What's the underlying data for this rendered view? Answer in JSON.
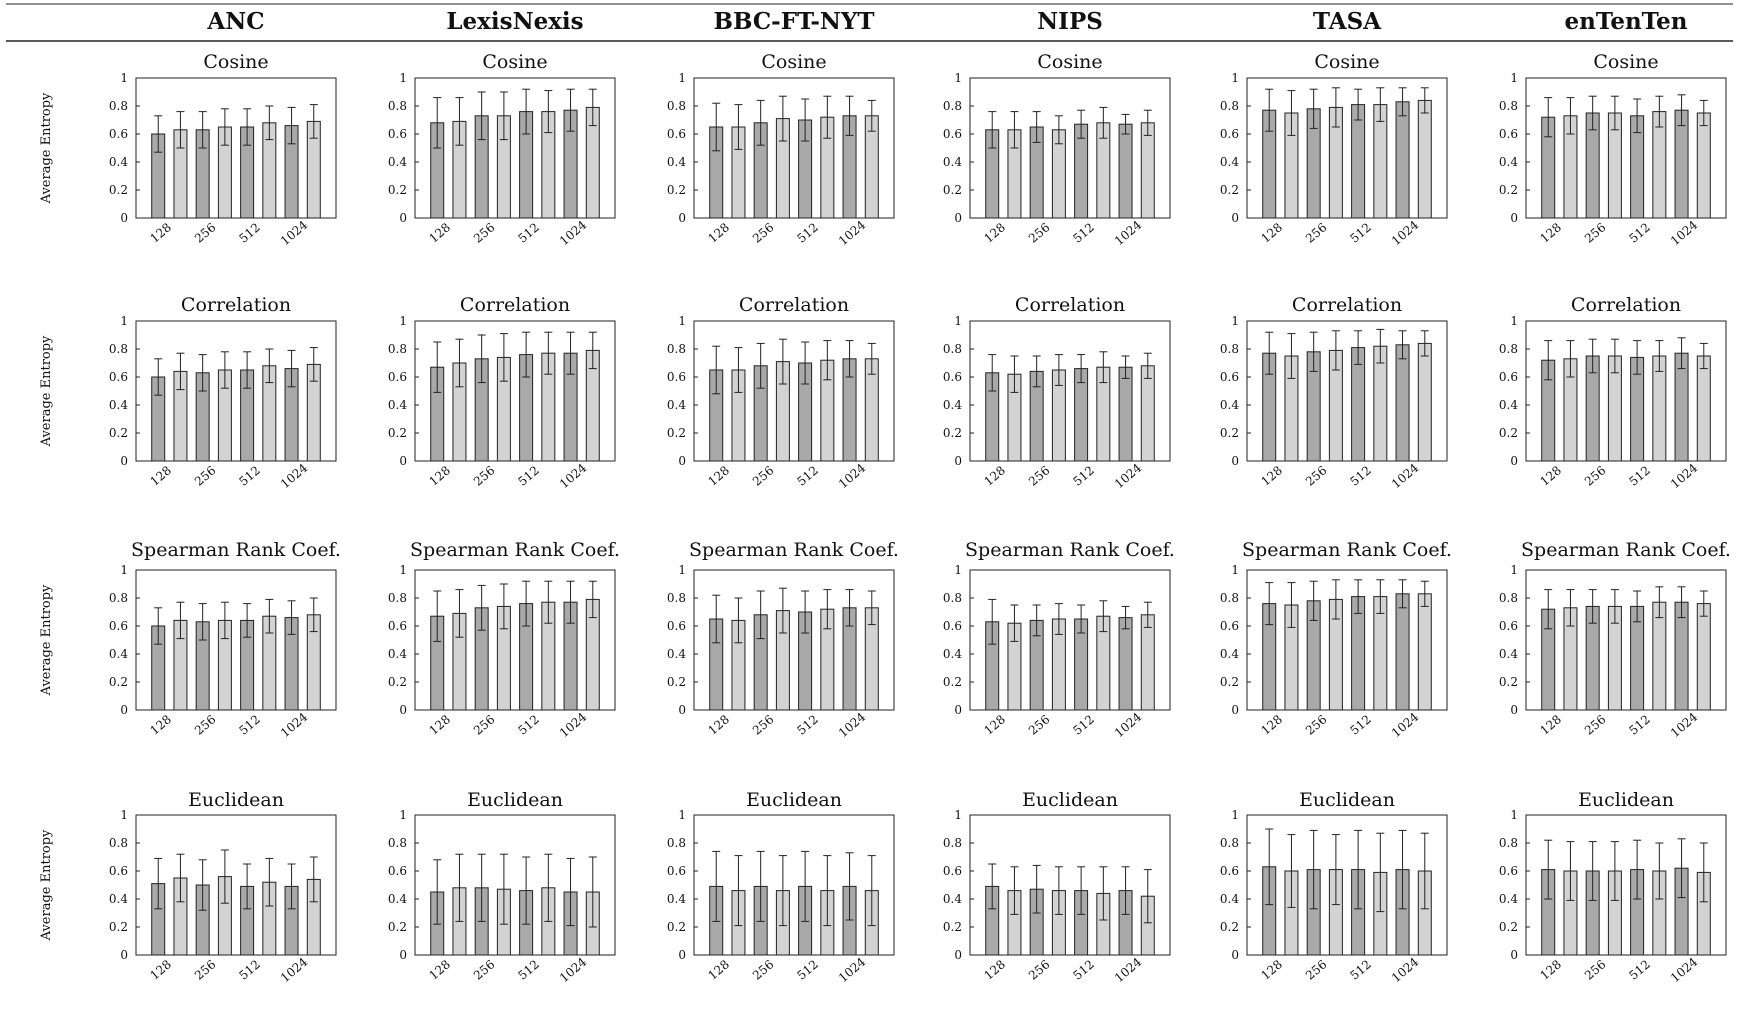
{
  "datasets": [
    "ANC",
    "LexisNexis",
    "BBC-FT-NYT",
    "NIPS",
    "TASA",
    "enTenTen"
  ],
  "ylabel": "Average Entropy",
  "chart_data": {
    "type": "bar",
    "layout": "grid of 4 rows (metrics) by 6 columns (datasets); two bars per dimension with error bars",
    "categories": [
      "128",
      "256",
      "512",
      "1024"
    ],
    "yticks": [
      "0",
      "0.2",
      "0.4",
      "0.6",
      "0.8",
      "1"
    ],
    "ylim": [
      0,
      1
    ],
    "grid": false,
    "panels": [
      {
        "dataset": "ANC",
        "title": "Cosine",
        "values": [
          0.6,
          0.63,
          0.63,
          0.65,
          0.65,
          0.68,
          0.66,
          0.69
        ],
        "errors": [
          0.13,
          0.13,
          0.13,
          0.13,
          0.13,
          0.12,
          0.13,
          0.12
        ]
      },
      {
        "dataset": "LexisNexis",
        "title": "Cosine",
        "values": [
          0.68,
          0.69,
          0.73,
          0.73,
          0.76,
          0.76,
          0.77,
          0.79
        ],
        "errors": [
          0.18,
          0.17,
          0.17,
          0.17,
          0.16,
          0.15,
          0.15,
          0.13
        ]
      },
      {
        "dataset": "BBC-FT-NYT",
        "title": "Cosine",
        "values": [
          0.65,
          0.65,
          0.68,
          0.71,
          0.7,
          0.72,
          0.73,
          0.73
        ],
        "errors": [
          0.17,
          0.16,
          0.16,
          0.16,
          0.15,
          0.15,
          0.14,
          0.11
        ]
      },
      {
        "dataset": "NIPS",
        "title": "Cosine",
        "values": [
          0.63,
          0.63,
          0.65,
          0.63,
          0.67,
          0.68,
          0.67,
          0.68
        ],
        "errors": [
          0.13,
          0.13,
          0.11,
          0.1,
          0.1,
          0.11,
          0.07,
          0.09
        ]
      },
      {
        "dataset": "TASA",
        "title": "Cosine",
        "values": [
          0.77,
          0.75,
          0.78,
          0.79,
          0.81,
          0.81,
          0.83,
          0.84
        ],
        "errors": [
          0.15,
          0.16,
          0.14,
          0.14,
          0.11,
          0.12,
          0.1,
          0.09
        ]
      },
      {
        "dataset": "enTenTen",
        "title": "Cosine",
        "values": [
          0.72,
          0.73,
          0.75,
          0.75,
          0.73,
          0.76,
          0.77,
          0.75
        ],
        "errors": [
          0.14,
          0.13,
          0.12,
          0.12,
          0.12,
          0.11,
          0.11,
          0.09
        ]
      },
      {
        "dataset": "ANC",
        "title": "Correlation",
        "values": [
          0.6,
          0.64,
          0.63,
          0.65,
          0.65,
          0.68,
          0.66,
          0.69
        ],
        "errors": [
          0.13,
          0.13,
          0.13,
          0.13,
          0.13,
          0.12,
          0.13,
          0.12
        ]
      },
      {
        "dataset": "LexisNexis",
        "title": "Correlation",
        "values": [
          0.67,
          0.7,
          0.73,
          0.74,
          0.76,
          0.77,
          0.77,
          0.79
        ],
        "errors": [
          0.18,
          0.17,
          0.17,
          0.17,
          0.16,
          0.15,
          0.15,
          0.13
        ]
      },
      {
        "dataset": "BBC-FT-NYT",
        "title": "Correlation",
        "values": [
          0.65,
          0.65,
          0.68,
          0.71,
          0.7,
          0.72,
          0.73,
          0.73
        ],
        "errors": [
          0.17,
          0.16,
          0.16,
          0.16,
          0.15,
          0.14,
          0.13,
          0.11
        ]
      },
      {
        "dataset": "NIPS",
        "title": "Correlation",
        "values": [
          0.63,
          0.62,
          0.64,
          0.65,
          0.66,
          0.67,
          0.67,
          0.68
        ],
        "errors": [
          0.13,
          0.13,
          0.11,
          0.11,
          0.1,
          0.11,
          0.08,
          0.09
        ]
      },
      {
        "dataset": "TASA",
        "title": "Correlation",
        "values": [
          0.77,
          0.75,
          0.78,
          0.79,
          0.81,
          0.82,
          0.83,
          0.84
        ],
        "errors": [
          0.15,
          0.16,
          0.14,
          0.14,
          0.12,
          0.12,
          0.1,
          0.09
        ]
      },
      {
        "dataset": "enTenTen",
        "title": "Correlation",
        "values": [
          0.72,
          0.73,
          0.75,
          0.75,
          0.74,
          0.75,
          0.77,
          0.75
        ],
        "errors": [
          0.14,
          0.13,
          0.12,
          0.12,
          0.12,
          0.11,
          0.11,
          0.09
        ]
      },
      {
        "dataset": "ANC",
        "title": "Spearman Rank Coef.",
        "values": [
          0.6,
          0.64,
          0.63,
          0.64,
          0.64,
          0.67,
          0.66,
          0.68
        ],
        "errors": [
          0.13,
          0.13,
          0.13,
          0.13,
          0.12,
          0.12,
          0.12,
          0.12
        ]
      },
      {
        "dataset": "LexisNexis",
        "title": "Spearman Rank Coef.",
        "values": [
          0.67,
          0.69,
          0.73,
          0.74,
          0.76,
          0.77,
          0.77,
          0.79
        ],
        "errors": [
          0.18,
          0.17,
          0.16,
          0.16,
          0.16,
          0.15,
          0.15,
          0.13
        ]
      },
      {
        "dataset": "BBC-FT-NYT",
        "title": "Spearman Rank Coef.",
        "values": [
          0.65,
          0.64,
          0.68,
          0.71,
          0.7,
          0.72,
          0.73,
          0.73
        ],
        "errors": [
          0.17,
          0.16,
          0.17,
          0.16,
          0.15,
          0.14,
          0.13,
          0.12
        ]
      },
      {
        "dataset": "NIPS",
        "title": "Spearman Rank Coef.",
        "values": [
          0.63,
          0.62,
          0.64,
          0.65,
          0.65,
          0.67,
          0.66,
          0.68
        ],
        "errors": [
          0.16,
          0.13,
          0.11,
          0.11,
          0.1,
          0.11,
          0.08,
          0.09
        ]
      },
      {
        "dataset": "TASA",
        "title": "Spearman Rank Coef.",
        "values": [
          0.76,
          0.75,
          0.78,
          0.79,
          0.81,
          0.81,
          0.83,
          0.83
        ],
        "errors": [
          0.15,
          0.16,
          0.14,
          0.14,
          0.12,
          0.12,
          0.1,
          0.09
        ]
      },
      {
        "dataset": "enTenTen",
        "title": "Spearman Rank Coef.",
        "values": [
          0.72,
          0.73,
          0.74,
          0.74,
          0.74,
          0.77,
          0.77,
          0.76
        ],
        "errors": [
          0.14,
          0.13,
          0.12,
          0.12,
          0.11,
          0.11,
          0.11,
          0.09
        ]
      },
      {
        "dataset": "ANC",
        "title": "Euclidean",
        "values": [
          0.51,
          0.55,
          0.5,
          0.56,
          0.49,
          0.52,
          0.49,
          0.54
        ],
        "errors": [
          0.18,
          0.17,
          0.18,
          0.19,
          0.16,
          0.17,
          0.16,
          0.16
        ]
      },
      {
        "dataset": "LexisNexis",
        "title": "Euclidean",
        "values": [
          0.45,
          0.48,
          0.48,
          0.47,
          0.46,
          0.48,
          0.45,
          0.45
        ],
        "errors": [
          0.23,
          0.24,
          0.24,
          0.25,
          0.24,
          0.24,
          0.24,
          0.25
        ]
      },
      {
        "dataset": "BBC-FT-NYT",
        "title": "Euclidean",
        "values": [
          0.49,
          0.46,
          0.49,
          0.46,
          0.49,
          0.46,
          0.49,
          0.46
        ],
        "errors": [
          0.25,
          0.25,
          0.25,
          0.25,
          0.25,
          0.25,
          0.24,
          0.25
        ]
      },
      {
        "dataset": "NIPS",
        "title": "Euclidean",
        "values": [
          0.49,
          0.46,
          0.47,
          0.46,
          0.46,
          0.44,
          0.46,
          0.42
        ],
        "errors": [
          0.16,
          0.17,
          0.17,
          0.17,
          0.17,
          0.19,
          0.17,
          0.19
        ]
      },
      {
        "dataset": "TASA",
        "title": "Euclidean",
        "values": [
          0.63,
          0.6,
          0.61,
          0.61,
          0.61,
          0.59,
          0.61,
          0.6
        ],
        "errors": [
          0.27,
          0.26,
          0.28,
          0.25,
          0.28,
          0.28,
          0.28,
          0.27
        ]
      },
      {
        "dataset": "enTenTen",
        "title": "Euclidean",
        "values": [
          0.61,
          0.6,
          0.6,
          0.6,
          0.61,
          0.6,
          0.62,
          0.59
        ],
        "errors": [
          0.21,
          0.21,
          0.21,
          0.21,
          0.21,
          0.2,
          0.21,
          0.21
        ]
      }
    ]
  },
  "colors": {
    "bar_dark": "#a9a9a9",
    "bar_light": "#d3d3d3",
    "axis": "#222222",
    "text": "#111111"
  }
}
